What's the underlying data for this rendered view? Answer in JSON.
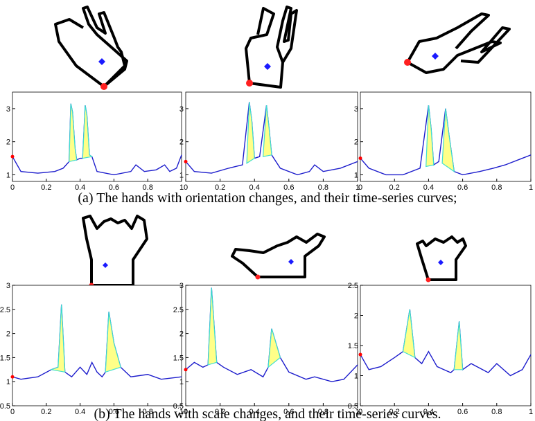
{
  "captions": [
    "(a) The hands with orientation changes,  and their time-series curves;",
    "(b) The hands with scale changes, and their time-series curves."
  ],
  "chart_data": [
    {
      "type": "line",
      "xlim": [
        0,
        1
      ],
      "ylim": [
        0.8,
        3.5
      ],
      "xticks": [
        0,
        0.2,
        0.4,
        0.6,
        0.8,
        1
      ],
      "yticks": [
        1,
        2,
        3
      ],
      "marker_color": "#ff0000",
      "x": [
        0,
        0.05,
        0.15,
        0.25,
        0.3,
        0.335,
        0.345,
        0.355,
        0.37,
        0.38,
        0.4,
        0.415,
        0.43,
        0.44,
        0.455,
        0.47,
        0.5,
        0.6,
        0.7,
        0.73,
        0.78,
        0.85,
        0.9,
        0.93,
        0.97,
        1
      ],
      "series": [
        {
          "color": "#1c1ccc",
          "values": [
            1.55,
            1.1,
            1.05,
            1.1,
            1.2,
            1.4,
            3.15,
            2.9,
            1.8,
            1.45,
            1.5,
            1.5,
            3.1,
            2.8,
            1.6,
            1.55,
            1.1,
            1.0,
            1.1,
            1.3,
            1.1,
            1.15,
            1.3,
            1.1,
            1.2,
            1.6
          ]
        },
        {
          "color": "#40e0d0",
          "fill": "#ffff88",
          "x": [
            0.335,
            0.345,
            0.355,
            0.37,
            0.38,
            null,
            0.415,
            0.43,
            0.44,
            0.455,
            0.47
          ],
          "values": [
            1.4,
            3.15,
            2.9,
            1.8,
            1.45,
            null,
            1.5,
            3.1,
            2.8,
            1.6,
            1.55
          ]
        }
      ]
    },
    {
      "type": "line",
      "xlim": [
        0,
        1
      ],
      "ylim": [
        0.8,
        3.5
      ],
      "xticks": [
        0,
        0.2,
        0.4,
        0.6,
        0.8,
        1
      ],
      "yticks": [
        1,
        2,
        3
      ],
      "marker_color": "#ff0000",
      "x": [
        0,
        0.05,
        0.15,
        0.25,
        0.33,
        0.37,
        0.385,
        0.4,
        0.43,
        0.47,
        0.485,
        0.5,
        0.55,
        0.65,
        0.72,
        0.75,
        0.8,
        0.9,
        1
      ],
      "series": [
        {
          "color": "#1c1ccc",
          "values": [
            1.4,
            1.1,
            1.05,
            1.2,
            1.3,
            3.2,
            2.6,
            1.5,
            1.55,
            3.1,
            2.4,
            1.6,
            1.2,
            1.0,
            1.1,
            1.3,
            1.1,
            1.2,
            1.4
          ]
        },
        {
          "color": "#40e0d0",
          "fill": "#ffff88",
          "x": [
            0.355,
            0.37,
            0.385,
            0.4,
            null,
            0.45,
            0.47,
            0.485,
            0.5
          ],
          "values": [
            1.35,
            3.2,
            2.6,
            1.5,
            null,
            1.55,
            3.1,
            2.4,
            1.6
          ]
        }
      ]
    },
    {
      "type": "line",
      "xlim": [
        0,
        1
      ],
      "ylim": [
        0.8,
        3.5
      ],
      "xticks": [
        0,
        0.2,
        0.4,
        0.6,
        0.8,
        1
      ],
      "yticks": [
        1,
        2,
        3
      ],
      "marker_color": "#ff0000",
      "x": [
        0,
        0.05,
        0.15,
        0.25,
        0.35,
        0.4,
        0.415,
        0.43,
        0.46,
        0.5,
        0.52,
        0.55,
        0.6,
        0.7,
        0.78,
        0.85,
        0.95,
        1
      ],
      "series": [
        {
          "color": "#1c1ccc",
          "values": [
            1.5,
            1.2,
            1.0,
            1.0,
            1.2,
            3.1,
            2.4,
            1.3,
            1.4,
            3.0,
            2.2,
            1.1,
            1.0,
            1.1,
            1.2,
            1.3,
            1.5,
            1.6
          ]
        },
        {
          "color": "#40e0d0",
          "fill": "#ffff88",
          "x": [
            0.385,
            0.4,
            0.415,
            0.43,
            null,
            0.48,
            0.5,
            0.52,
            0.55
          ],
          "values": [
            1.25,
            3.1,
            2.4,
            1.3,
            null,
            1.35,
            3.0,
            2.2,
            1.1
          ]
        }
      ]
    },
    {
      "type": "line",
      "xlim": [
        0,
        1
      ],
      "ylim": [
        0.5,
        3
      ],
      "xticks": [
        0,
        0.2,
        0.4,
        0.6,
        0.8,
        1
      ],
      "yticks": [
        0.5,
        1,
        1.5,
        2,
        2.5,
        3
      ],
      "marker_color": "#ff0000",
      "x": [
        0,
        0.05,
        0.15,
        0.23,
        0.27,
        0.29,
        0.31,
        0.35,
        0.4,
        0.44,
        0.47,
        0.5,
        0.53,
        0.55,
        0.57,
        0.6,
        0.64,
        0.7,
        0.8,
        0.88,
        1
      ],
      "series": [
        {
          "color": "#1c1ccc",
          "values": [
            1.1,
            1.05,
            1.1,
            1.25,
            1.3,
            2.6,
            1.2,
            1.1,
            1.3,
            1.15,
            1.4,
            1.2,
            1.1,
            1.2,
            2.45,
            1.8,
            1.3,
            1.1,
            1.15,
            1.05,
            1.1
          ]
        },
        {
          "color": "#40e0d0",
          "fill": "#ffff88",
          "x": [
            0.23,
            0.27,
            0.29,
            0.31,
            null,
            0.55,
            0.57,
            0.6,
            0.64
          ],
          "values": [
            1.25,
            1.3,
            2.6,
            1.2,
            null,
            1.2,
            2.45,
            1.8,
            1.3
          ]
        }
      ]
    },
    {
      "type": "line",
      "xlim": [
        0,
        1
      ],
      "ylim": [
        0.5,
        3
      ],
      "xticks": [
        0,
        0.2,
        0.4,
        0.6,
        0.8,
        1
      ],
      "yticks": [
        0.5,
        1,
        1.5,
        2,
        2.5,
        3
      ],
      "marker_color": "#ff0000",
      "x": [
        0,
        0.05,
        0.1,
        0.13,
        0.15,
        0.18,
        0.22,
        0.3,
        0.38,
        0.45,
        0.48,
        0.5,
        0.55,
        0.6,
        0.7,
        0.75,
        0.85,
        0.92,
        1
      ],
      "series": [
        {
          "color": "#1c1ccc",
          "values": [
            1.25,
            1.4,
            1.3,
            1.35,
            2.95,
            1.4,
            1.3,
            1.15,
            1.25,
            1.1,
            1.3,
            2.1,
            1.5,
            1.2,
            1.05,
            1.1,
            1.0,
            1.05,
            1.35
          ]
        },
        {
          "color": "#40e0d0",
          "fill": "#ffff88",
          "x": [
            0.13,
            0.15,
            0.18,
            null,
            0.48,
            0.5,
            0.55
          ],
          "values": [
            1.35,
            2.95,
            1.4,
            null,
            1.3,
            2.1,
            1.5
          ]
        }
      ]
    },
    {
      "type": "line",
      "xlim": [
        0,
        1
      ],
      "ylim": [
        0.5,
        2.5
      ],
      "xticks": [
        0,
        0.2,
        0.4,
        0.6,
        0.8,
        1
      ],
      "yticks": [
        0.5,
        1,
        1.5,
        2,
        2.5
      ],
      "marker_color": "#ff0000",
      "x": [
        0,
        0.05,
        0.12,
        0.2,
        0.25,
        0.29,
        0.32,
        0.36,
        0.4,
        0.45,
        0.53,
        0.55,
        0.58,
        0.6,
        0.65,
        0.75,
        0.8,
        0.88,
        0.95,
        1
      ],
      "series": [
        {
          "color": "#1c1ccc",
          "values": [
            1.35,
            1.1,
            1.15,
            1.3,
            1.4,
            2.1,
            1.3,
            1.2,
            1.4,
            1.15,
            1.05,
            1.1,
            1.9,
            1.1,
            1.2,
            1.05,
            1.2,
            1.0,
            1.1,
            1.35
          ]
        },
        {
          "color": "#40e0d0",
          "fill": "#ffff88",
          "x": [
            0.25,
            0.29,
            0.32,
            null,
            0.55,
            0.58,
            0.6
          ],
          "values": [
            1.4,
            2.1,
            1.3,
            null,
            1.1,
            1.9,
            1.1
          ]
        }
      ]
    }
  ]
}
